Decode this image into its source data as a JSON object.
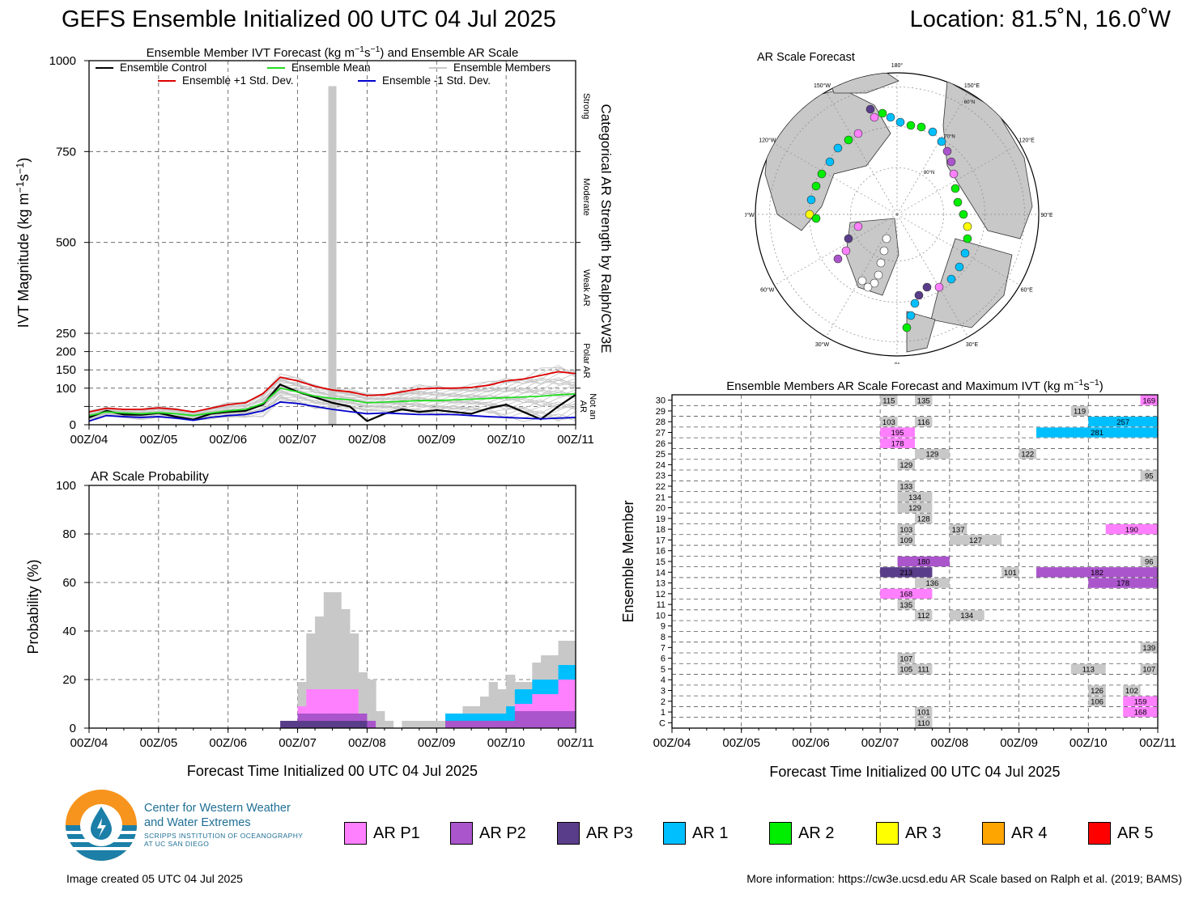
{
  "header": {
    "title": "GEFS Ensemble Initialized 00 UTC 04 Jul 2025",
    "location": "Location: 81.5˚N, 16.0˚W"
  },
  "colors": {
    "ar_p1": "#ff80ff",
    "ar_p2": "#aa55cc",
    "ar_p3": "#5a3d8a",
    "ar_1": "#00bfff",
    "ar_2": "#00ee00",
    "ar_3": "#ffff00",
    "ar_4": "#ffa500",
    "ar_5": "#ff0000",
    "non_ar": "#c8c8c8"
  },
  "chart_data": [
    {
      "type": "line",
      "title": "Ensemble Member IVT Forecast (kg m⁻¹s⁻¹) and Ensemble AR Scale",
      "ylabel": "IVT Magnitude (kg m⁻¹s⁻¹)",
      "right_label": "Categorical AR Strength by Ralph/CW3E",
      "right_categories": [
        "Strong",
        "Moderate",
        "Weak AR",
        "Polar AR",
        "Not an AR"
      ],
      "x_ticks": [
        "00Z/04",
        "00Z/05",
        "00Z/06",
        "00Z/07",
        "00Z/08",
        "00Z/09",
        "00Z/10",
        "00Z/11"
      ],
      "y_ticks": [
        0,
        50,
        100,
        150,
        200,
        250,
        500,
        750,
        1000
      ],
      "y_tick_labels": [
        "0",
        "",
        "100",
        "150",
        "200",
        "250",
        "500",
        "750",
        "1000"
      ],
      "legend": [
        "Ensemble Control",
        "Ensemble Mean",
        "Ensemble Members",
        "Ensemble +1 Std. Dev.",
        "Ensemble -1 Std. Dev."
      ],
      "x_hours": [
        0,
        6,
        12,
        18,
        24,
        30,
        36,
        42,
        48,
        54,
        60,
        66,
        72,
        78,
        84,
        90,
        96,
        102,
        108,
        114,
        120,
        126,
        132,
        138,
        144,
        150,
        156,
        162,
        168
      ],
      "series": [
        {
          "name": "Ensemble Control",
          "color": "#000000",
          "values": [
            20,
            38,
            28,
            27,
            32,
            22,
            14,
            30,
            35,
            38,
            55,
            110,
            90,
            75,
            60,
            50,
            10,
            30,
            42,
            35,
            40,
            35,
            30,
            45,
            55,
            35,
            15,
            50,
            82
          ]
        },
        {
          "name": "Ensemble Mean",
          "color": "#22dd22",
          "values": [
            25,
            35,
            32,
            30,
            33,
            30,
            25,
            32,
            38,
            42,
            58,
            100,
            90,
            78,
            72,
            68,
            60,
            62,
            64,
            66,
            66,
            68,
            70,
            72,
            74,
            76,
            78,
            82,
            84
          ]
        },
        {
          "name": "Ensemble +1 Std. Dev.",
          "color": "#dd0000",
          "values": [
            35,
            45,
            42,
            42,
            46,
            42,
            35,
            45,
            55,
            60,
            85,
            130,
            120,
            105,
            95,
            90,
            80,
            82,
            90,
            98,
            100,
            100,
            102,
            108,
            120,
            125,
            135,
            145,
            140
          ]
        },
        {
          "name": "Ensemble -1 Std. Dev.",
          "color": "#0000cc",
          "values": [
            10,
            25,
            22,
            20,
            22,
            18,
            12,
            20,
            25,
            28,
            38,
            62,
            58,
            50,
            42,
            36,
            30,
            32,
            30,
            28,
            28,
            28,
            25,
            22,
            20,
            18,
            16,
            18,
            20
          ]
        }
      ],
      "ensemble_bar": {
        "x_hour": 84,
        "value": 930
      }
    },
    {
      "type": "area",
      "title": "AR Scale Probability",
      "ylabel": "Probability (%)",
      "xlabel": "Forecast Time Initialized 00 UTC 04 Jul 2025",
      "x_ticks": [
        "00Z/04",
        "00Z/05",
        "00Z/06",
        "00Z/07",
        "00Z/08",
        "00Z/09",
        "00Z/10",
        "00Z/11"
      ],
      "y_ticks": [
        0,
        20,
        40,
        60,
        80,
        100
      ],
      "ylim": [
        0,
        100
      ],
      "x_hours": [
        66,
        69,
        72,
        75,
        78,
        81,
        84,
        87,
        90,
        93,
        96,
        99,
        102,
        105,
        108,
        111,
        114,
        117,
        120,
        123,
        126,
        129,
        132,
        135,
        138,
        141,
        144,
        147,
        150,
        153,
        156,
        159,
        162,
        165
      ],
      "series": [
        {
          "name": "AR P3",
          "color": "#5a3d8a",
          "values": [
            3,
            3,
            3,
            3,
            3,
            3,
            3,
            3,
            3,
            3,
            0,
            0,
            0,
            0,
            0,
            0,
            0,
            0,
            0,
            0,
            0,
            0,
            0,
            0,
            0,
            0,
            0,
            0,
            0,
            0,
            0,
            0,
            0,
            0
          ]
        },
        {
          "name": "AR P2",
          "color": "#aa55cc",
          "values": [
            0,
            0,
            3,
            3,
            3,
            3,
            3,
            3,
            3,
            3,
            3,
            0,
            0,
            0,
            0,
            0,
            0,
            0,
            0,
            3,
            3,
            3,
            3,
            3,
            3,
            3,
            3,
            7,
            7,
            7,
            7,
            7,
            7,
            7
          ]
        },
        {
          "name": "AR P1",
          "color": "#ff80ff",
          "values": [
            0,
            0,
            3,
            10,
            10,
            10,
            10,
            10,
            10,
            0,
            0,
            0,
            0,
            0,
            0,
            0,
            0,
            0,
            0,
            0,
            0,
            0,
            0,
            0,
            0,
            0,
            0,
            3,
            3,
            7,
            7,
            7,
            13,
            13
          ]
        },
        {
          "name": "AR 1",
          "color": "#00bfff",
          "values": [
            0,
            0,
            0,
            0,
            0,
            0,
            0,
            0,
            0,
            0,
            0,
            0,
            0,
            0,
            0,
            0,
            0,
            0,
            0,
            3,
            3,
            3,
            3,
            3,
            3,
            3,
            6,
            6,
            6,
            6,
            6,
            6,
            6,
            6
          ]
        },
        {
          "name": "Not an AR",
          "color": "#c8c8c8",
          "values": [
            0,
            0,
            10,
            23,
            30,
            40,
            40,
            33,
            23,
            17,
            17,
            7,
            3,
            0,
            3,
            3,
            3,
            3,
            3,
            0,
            0,
            3,
            3,
            7,
            13,
            10,
            13,
            3,
            3,
            7,
            10,
            10,
            10,
            10
          ]
        }
      ]
    },
    {
      "type": "heatmap",
      "title": "Ensemble Members AR Scale Forecast and Maximum IVT (kg m⁻¹s⁻¹)",
      "ylabel": "Ensemble Member",
      "xlabel": "Forecast Time Initialized 00 UTC 04 Jul 2025",
      "x_ticks": [
        "00Z/04",
        "00Z/05",
        "00Z/06",
        "00Z/07",
        "00Z/08",
        "00Z/09",
        "00Z/10",
        "00Z/11"
      ],
      "members": [
        "C",
        "1",
        "2",
        "3",
        "4",
        "5",
        "6",
        "7",
        "8",
        "9",
        "10",
        "11",
        "12",
        "13",
        "14",
        "15",
        "16",
        "17",
        "18",
        "19",
        "20",
        "21",
        "22",
        "23",
        "24",
        "25",
        "26",
        "27",
        "28",
        "29",
        "30"
      ],
      "cells": [
        {
          "member": "C",
          "start": 84,
          "end": 90,
          "category": "non_ar",
          "label": "110"
        },
        {
          "member": "1",
          "start": 84,
          "end": 90,
          "category": "non_ar",
          "label": "101"
        },
        {
          "member": "1",
          "start": 156,
          "end": 168,
          "category": "ar_p1",
          "label": "168"
        },
        {
          "member": "2",
          "start": 144,
          "end": 150,
          "category": "non_ar",
          "label": "106"
        },
        {
          "member": "2",
          "start": 156,
          "end": 168,
          "category": "ar_p1",
          "label": "159"
        },
        {
          "member": "3",
          "start": 144,
          "end": 150,
          "category": "non_ar",
          "label": "126"
        },
        {
          "member": "3",
          "start": 156,
          "end": 162,
          "category": "non_ar",
          "label": "102"
        },
        {
          "member": "5",
          "start": 78,
          "end": 84,
          "category": "non_ar",
          "label": "105"
        },
        {
          "member": "5",
          "start": 84,
          "end": 90,
          "category": "non_ar",
          "label": "111"
        },
        {
          "member": "5",
          "start": 138,
          "end": 150,
          "category": "non_ar",
          "label": "113"
        },
        {
          "member": "5",
          "start": 162,
          "end": 168,
          "category": "non_ar",
          "label": "107"
        },
        {
          "member": "6",
          "start": 78,
          "end": 84,
          "category": "non_ar",
          "label": "107"
        },
        {
          "member": "7",
          "start": 162,
          "end": 168,
          "category": "non_ar",
          "label": "139"
        },
        {
          "member": "10",
          "start": 84,
          "end": 90,
          "category": "non_ar",
          "label": "112"
        },
        {
          "member": "10",
          "start": 96,
          "end": 108,
          "category": "non_ar",
          "label": "134"
        },
        {
          "member": "11",
          "start": 78,
          "end": 84,
          "category": "non_ar",
          "label": "135"
        },
        {
          "member": "12",
          "start": 72,
          "end": 90,
          "category": "ar_p1",
          "label": "168"
        },
        {
          "member": "13",
          "start": 84,
          "end": 96,
          "category": "non_ar",
          "label": "136"
        },
        {
          "member": "13",
          "start": 144,
          "end": 168,
          "category": "ar_p2",
          "label": "178"
        },
        {
          "member": "14",
          "start": 72,
          "end": 90,
          "category": "ar_p3",
          "label": "213"
        },
        {
          "member": "14",
          "start": 114,
          "end": 120,
          "category": "non_ar",
          "label": "101"
        },
        {
          "member": "14",
          "start": 126,
          "end": 168,
          "category": "ar_p2",
          "label": "182"
        },
        {
          "member": "15",
          "start": 78,
          "end": 96,
          "category": "ar_p2",
          "label": "180"
        },
        {
          "member": "15",
          "start": 162,
          "end": 168,
          "category": "non_ar",
          "label": "96"
        },
        {
          "member": "17",
          "start": 78,
          "end": 84,
          "category": "non_ar",
          "label": "109"
        },
        {
          "member": "17",
          "start": 96,
          "end": 114,
          "category": "non_ar",
          "label": "127"
        },
        {
          "member": "18",
          "start": 78,
          "end": 84,
          "category": "non_ar",
          "label": "103"
        },
        {
          "member": "18",
          "start": 96,
          "end": 102,
          "category": "non_ar",
          "label": "137"
        },
        {
          "member": "18",
          "start": 150,
          "end": 168,
          "category": "ar_p1",
          "label": "190"
        },
        {
          "member": "19",
          "start": 84,
          "end": 90,
          "category": "non_ar",
          "label": "128"
        },
        {
          "member": "20",
          "start": 78,
          "end": 90,
          "category": "non_ar",
          "label": "129"
        },
        {
          "member": "21",
          "start": 78,
          "end": 90,
          "category": "non_ar",
          "label": "134"
        },
        {
          "member": "22",
          "start": 78,
          "end": 84,
          "category": "non_ar",
          "label": "133"
        },
        {
          "member": "23",
          "start": 162,
          "end": 168,
          "category": "non_ar",
          "label": "95"
        },
        {
          "member": "24",
          "start": 78,
          "end": 84,
          "category": "non_ar",
          "label": "129"
        },
        {
          "member": "25",
          "start": 84,
          "end": 96,
          "category": "non_ar",
          "label": "129"
        },
        {
          "member": "25",
          "start": 120,
          "end": 126,
          "category": "non_ar",
          "label": "122"
        },
        {
          "member": "26",
          "start": 72,
          "end": 84,
          "category": "ar_p1",
          "label": "178"
        },
        {
          "member": "27",
          "start": 72,
          "end": 84,
          "category": "ar_p1",
          "label": "195"
        },
        {
          "member": "27",
          "start": 126,
          "end": 168,
          "category": "ar_1",
          "label": "281"
        },
        {
          "member": "28",
          "start": 72,
          "end": 78,
          "category": "non_ar",
          "label": "103"
        },
        {
          "member": "28",
          "start": 84,
          "end": 90,
          "category": "non_ar",
          "label": "116"
        },
        {
          "member": "28",
          "start": 144,
          "end": 168,
          "category": "ar_1",
          "label": "257"
        },
        {
          "member": "29",
          "start": 138,
          "end": 144,
          "category": "non_ar",
          "label": "119"
        },
        {
          "member": "30",
          "start": 72,
          "end": 78,
          "category": "non_ar",
          "label": "115"
        },
        {
          "member": "30",
          "start": 84,
          "end": 90,
          "category": "non_ar",
          "label": "135"
        },
        {
          "member": "30",
          "start": 162,
          "end": 168,
          "category": "ar_p1",
          "label": "169"
        }
      ]
    }
  ],
  "map": {
    "title": "AR Scale Forecast",
    "lon_labels": [
      "180°",
      "150°E",
      "120°E",
      "90°E",
      "60°E",
      "30°E",
      "0°",
      "30°W",
      "60°W",
      "90°W",
      "120°W",
      "150°W"
    ],
    "lat_labels": [
      "60°N",
      "70°N",
      "80°N"
    ]
  },
  "legend": [
    {
      "key": "ar_p1",
      "label": "AR P1"
    },
    {
      "key": "ar_p2",
      "label": "AR P2"
    },
    {
      "key": "ar_p3",
      "label": "AR P3"
    },
    {
      "key": "ar_1",
      "label": "AR 1"
    },
    {
      "key": "ar_2",
      "label": "AR 2"
    },
    {
      "key": "ar_3",
      "label": "AR 3"
    },
    {
      "key": "ar_4",
      "label": "AR 4"
    },
    {
      "key": "ar_5",
      "label": "AR 5"
    }
  ],
  "logo": {
    "line1": "Center for Western Weather",
    "line2": "and Water Extremes",
    "line3": "SCRIPPS INSTITUTION OF OCEANOGRAPHY",
    "line4": "AT UC SAN DIEGO"
  },
  "footer": {
    "created": "Image created 05 UTC 04 Jul 2025",
    "info": "More information: https://cw3e.ucsd.edu AR Scale based on Ralph et al. (2019; BAMS)"
  }
}
